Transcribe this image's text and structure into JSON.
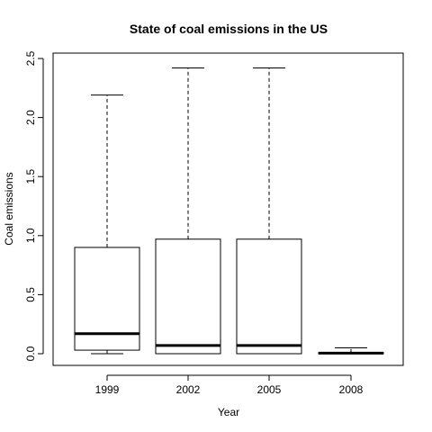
{
  "chart_data": {
    "type": "box",
    "title": "State of coal emissions in the US",
    "xlabel": "Year",
    "ylabel": "Coal emissions",
    "categories": [
      "1999",
      "2002",
      "2005",
      "2008"
    ],
    "boxes": [
      {
        "category": "1999",
        "whisker_low": 0.0,
        "q1": 0.03,
        "median": 0.17,
        "q3": 0.9,
        "whisker_high": 2.19
      },
      {
        "category": "2002",
        "whisker_low": 0.0,
        "q1": 0.0,
        "median": 0.07,
        "q3": 0.97,
        "whisker_high": 2.42
      },
      {
        "category": "2005",
        "whisker_low": 0.0,
        "q1": 0.0,
        "median": 0.07,
        "q3": 0.97,
        "whisker_high": 2.42
      },
      {
        "category": "2008",
        "whisker_low": 0.0,
        "q1": 0.0,
        "median": 0.005,
        "q3": 0.01,
        "whisker_high": 0.05
      }
    ],
    "ylim": [
      -0.1,
      2.5
    ],
    "yticks": [
      0.0,
      0.5,
      1.0,
      1.5,
      2.0,
      2.5
    ],
    "ytick_labels": [
      "0.0",
      "0.5",
      "1.0",
      "1.5",
      "2.0",
      "2.5"
    ],
    "grid": false,
    "legend": "none"
  }
}
